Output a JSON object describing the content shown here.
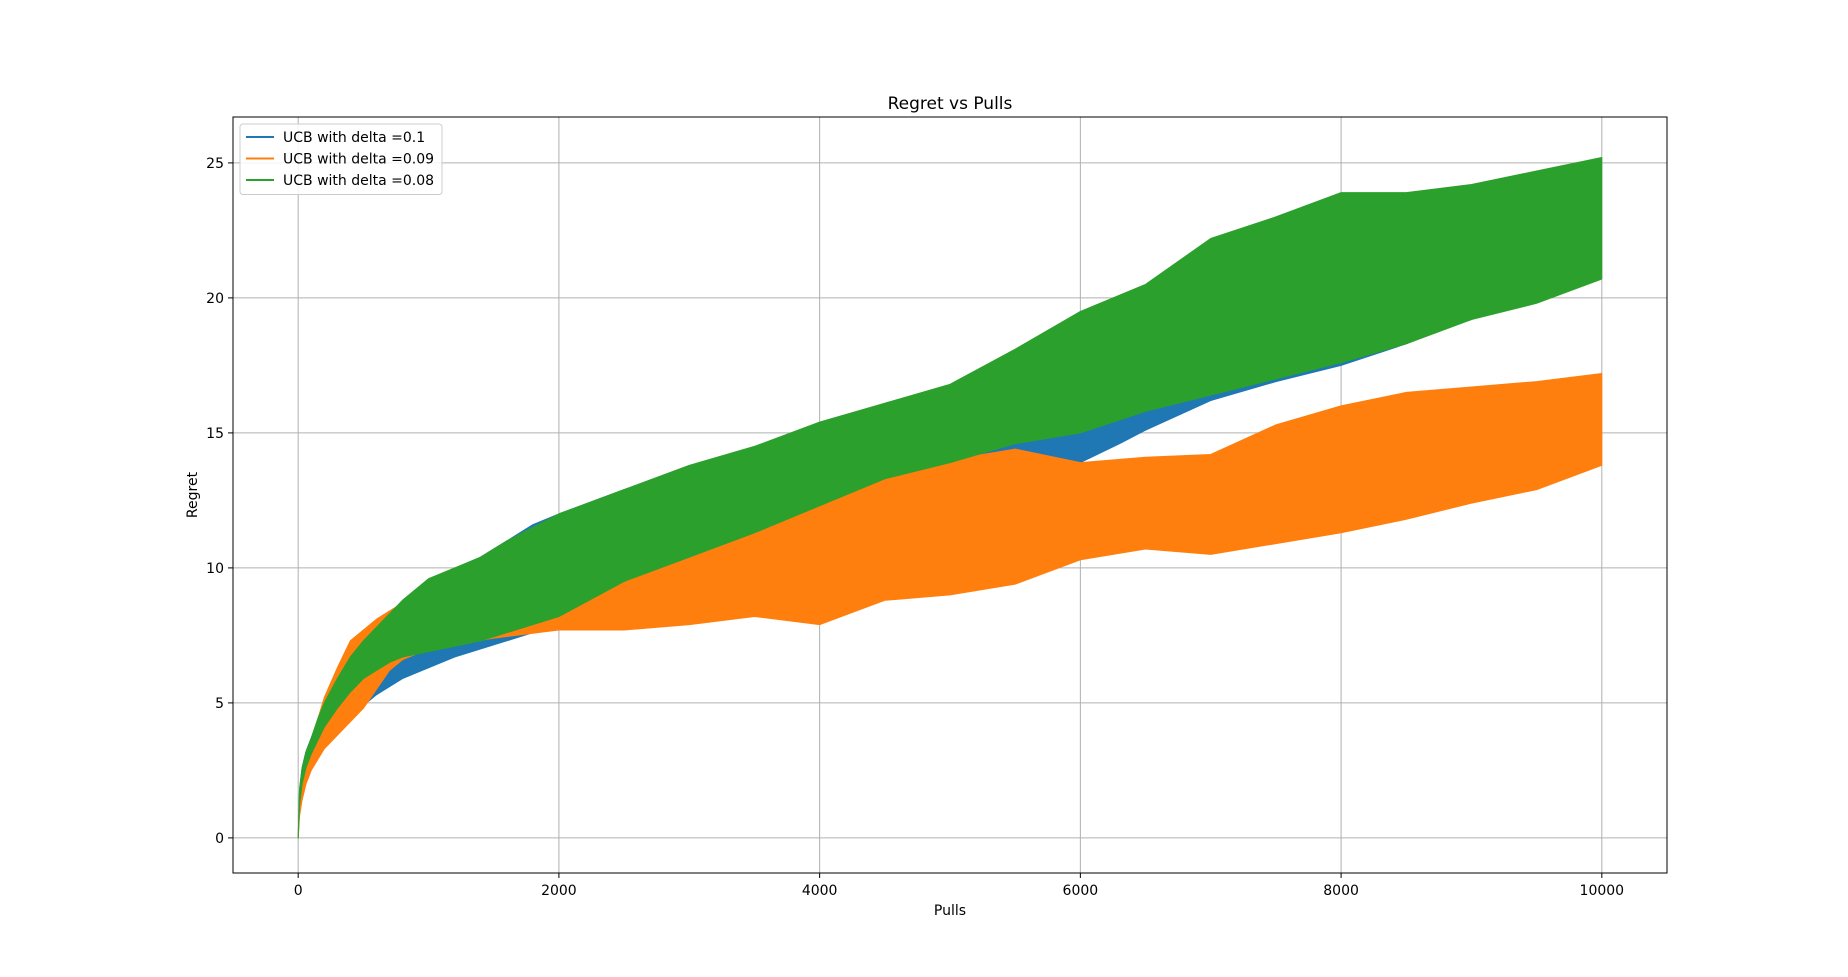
{
  "chart_data": {
    "type": "area",
    "title": "Regret vs Pulls",
    "xlabel": "Pulls",
    "ylabel": "Regret",
    "xlim": [
      -500,
      10500
    ],
    "ylim": [
      -1.3,
      26.7
    ],
    "xticks": [
      0,
      2000,
      4000,
      6000,
      8000,
      10000
    ],
    "yticks": [
      0,
      5,
      10,
      15,
      20,
      25
    ],
    "xtick_labels": [
      "0",
      "2000",
      "4000",
      "6000",
      "8000",
      "10000"
    ],
    "ytick_labels": [
      "0",
      "5",
      "10",
      "15",
      "20",
      "25"
    ],
    "grid": true,
    "legend_position": "top-left",
    "series": [
      {
        "name": "UCB with delta =0.1",
        "color": "#1f77b4",
        "x": [
          0,
          10,
          30,
          60,
          100,
          150,
          200,
          300,
          400,
          500,
          600,
          700,
          800,
          1000,
          1200,
          1400,
          1600,
          1800,
          2000,
          2500,
          3000,
          3500,
          3800,
          4000,
          4500,
          5000,
          5500,
          6000,
          6300,
          6500,
          7000,
          7500,
          8000,
          8500,
          8800,
          9000
        ],
        "upper": [
          0,
          1.8,
          2.6,
          3.2,
          3.7,
          4.3,
          4.9,
          5.7,
          6.3,
          6.8,
          7.3,
          7.8,
          8.4,
          9.2,
          9.8,
          10.4,
          11.0,
          11.6,
          12.0,
          12.9,
          13.7,
          14.3,
          14.8,
          15.0,
          15.7,
          16.5,
          17.5,
          18.4,
          19.0,
          19.4,
          20.3,
          21.3,
          22.0,
          22.6,
          22.8,
          23.0
        ],
        "lower": [
          0,
          1.0,
          1.8,
          2.4,
          2.9,
          3.3,
          3.6,
          4.1,
          4.5,
          4.9,
          5.3,
          5.6,
          5.9,
          6.3,
          6.7,
          7.0,
          7.3,
          7.6,
          7.9,
          9.0,
          10.2,
          11.4,
          12.5,
          13.2,
          13.6,
          13.9,
          14.4,
          13.9,
          14.6,
          15.1,
          16.2,
          16.9,
          17.5,
          18.3,
          18.9,
          19.2
        ]
      },
      {
        "name": "UCB with delta =0.09",
        "color": "#ff7f0e",
        "x": [
          0,
          10,
          30,
          60,
          100,
          150,
          200,
          300,
          400,
          500,
          600,
          700,
          800,
          1000,
          1500,
          2000,
          2500,
          3000,
          3500,
          4000,
          4500,
          5000,
          5500,
          6000,
          6500,
          7000,
          7500,
          8000,
          8500,
          9000,
          9500,
          10000
        ],
        "upper": [
          0,
          1.4,
          2.3,
          3.0,
          3.6,
          4.4,
          5.2,
          6.3,
          7.3,
          7.7,
          8.1,
          8.4,
          8.7,
          8.9,
          8.6,
          8.3,
          9.8,
          10.8,
          11.3,
          12.8,
          13.6,
          14.0,
          14.4,
          13.9,
          14.1,
          14.2,
          15.3,
          16.0,
          16.5,
          16.7,
          16.9,
          17.2
        ],
        "lower": [
          0,
          0.8,
          1.4,
          2.0,
          2.5,
          2.9,
          3.3,
          3.8,
          4.3,
          4.8,
          5.5,
          6.2,
          6.6,
          7.0,
          7.4,
          7.7,
          7.7,
          7.9,
          8.2,
          7.9,
          8.8,
          9.0,
          9.4,
          10.3,
          10.7,
          10.5,
          10.9,
          11.3,
          11.8,
          12.4,
          12.9,
          13.8
        ]
      },
      {
        "name": "UCB with delta =0.08",
        "color": "#2ca02c",
        "x": [
          0,
          10,
          30,
          60,
          100,
          150,
          200,
          300,
          400,
          500,
          600,
          700,
          800,
          1000,
          1200,
          1400,
          1600,
          1800,
          2000,
          2500,
          3000,
          3500,
          4000,
          4500,
          5000,
          5500,
          6000,
          6500,
          7000,
          7500,
          8000,
          8500,
          9000,
          9500,
          10000
        ],
        "upper": [
          0,
          1.8,
          2.6,
          3.2,
          3.7,
          4.4,
          5.0,
          5.9,
          6.7,
          7.3,
          7.8,
          8.3,
          8.8,
          9.6,
          10.0,
          10.4,
          11.0,
          11.5,
          12.0,
          12.9,
          13.8,
          14.5,
          15.4,
          16.1,
          16.8,
          18.1,
          19.5,
          20.5,
          22.2,
          23.0,
          23.9,
          23.9,
          24.2,
          24.7,
          25.2
        ],
        "lower": [
          0,
          1.2,
          2.0,
          2.6,
          3.1,
          3.6,
          4.1,
          4.8,
          5.4,
          5.9,
          6.2,
          6.5,
          6.7,
          6.9,
          7.1,
          7.3,
          7.6,
          7.9,
          8.2,
          9.5,
          10.4,
          11.3,
          12.3,
          13.3,
          13.9,
          14.6,
          15.0,
          15.8,
          16.4,
          17.0,
          17.6,
          18.3,
          19.2,
          19.8,
          20.7
        ]
      }
    ]
  }
}
